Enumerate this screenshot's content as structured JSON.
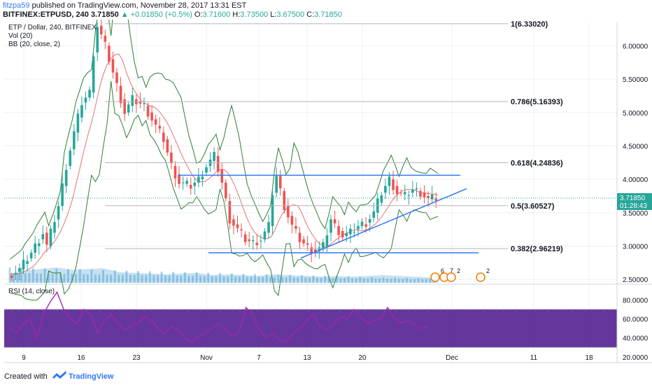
{
  "header": {
    "user": "fitzpa59",
    "published_text": "published on TradingView.com, November 28, 2017 13:31 EST",
    "symbol_line": "BITFINEX:ETPUSD, 240",
    "price": "3.71850",
    "change": "+0.01850 (+0.5%)",
    "o_label": "O:",
    "o": "3.71600",
    "h_label": "H:",
    "h": "3.73500",
    "l_label": "L:",
    "l": "3.67500",
    "c_label": "C:",
    "c": "3.71850"
  },
  "legend": {
    "title": "ETP / Dollar, 240, BITFINEX",
    "vol": "Vol (20)",
    "bb": "BB (20, close, 2)",
    "rsi": "RSI (14, close)"
  },
  "footer": {
    "created_with": "Created with",
    "brand": "TradingView"
  },
  "colors": {
    "up": "#26a69a",
    "down": "#ef5350",
    "bb": "#2e7d32",
    "basis": "#e57373",
    "rsi": "#9c27b0",
    "rsi_band": "#4a148c",
    "trendline": "#3179f5",
    "price_marker": "#26a69a",
    "volume": "#1e88c8"
  },
  "chart_data": {
    "type": "candlestick",
    "symbol": "ETPUSD",
    "interval": "240",
    "ylim": [
      2.45,
      6.35
    ],
    "price_ticks": [
      "6.00000",
      "5.50000",
      "5.00000",
      "4.50000",
      "4.00000",
      "3.50000",
      "3.00000",
      "2.50000"
    ],
    "price_tick_values": [
      6.0,
      5.5,
      5.0,
      4.5,
      4.0,
      3.5,
      3.0,
      2.5
    ],
    "last_price": "3.71850",
    "countdown": "01:28:43",
    "x_ticks": [
      "9",
      "16",
      "23",
      "Nov",
      "7",
      "13",
      "20",
      "Dec",
      "11",
      "18"
    ],
    "fib_levels": [
      {
        "label": "1(6.33020)",
        "value": 6.3302
      },
      {
        "label": "0.786(5.16393)",
        "value": 5.16393
      },
      {
        "label": "0.618(4.24836)",
        "value": 4.24836
      },
      {
        "label": "0.5(3.60527)",
        "value": 3.60527
      },
      {
        "label": "0.382(2.96219)",
        "value": 2.96219
      }
    ],
    "rsi_ticks": [
      "80.0000",
      "60.0000",
      "40.0000",
      "20.0000"
    ],
    "rsi_tick_values": [
      80,
      60,
      40,
      20
    ],
    "rsi_bands": [
      70,
      30
    ],
    "rsi_ylim": [
      14,
      95
    ],
    "event_badges": [
      "6",
      "7",
      "2",
      "2"
    ],
    "price_path": [
      [
        0,
        2.55
      ],
      [
        3,
        2.65
      ],
      [
        6,
        2.9
      ],
      [
        9,
        3.2
      ],
      [
        10,
        3.0
      ],
      [
        13,
        3.6
      ],
      [
        15,
        4.2
      ],
      [
        17,
        4.7
      ],
      [
        19,
        5.15
      ],
      [
        21,
        5.3
      ],
      [
        22,
        5.9
      ],
      [
        23,
        6.3
      ],
      [
        25,
        6.0
      ],
      [
        28,
        5.4
      ],
      [
        30,
        5.0
      ],
      [
        32,
        5.2
      ],
      [
        35,
        5.1
      ],
      [
        38,
        4.8
      ],
      [
        40,
        4.6
      ],
      [
        42,
        4.2
      ],
      [
        44,
        3.95
      ],
      [
        47,
        3.9
      ],
      [
        49,
        4.0
      ],
      [
        51,
        4.2
      ],
      [
        53,
        4.35
      ],
      [
        55,
        3.95
      ],
      [
        57,
        3.4
      ],
      [
        59,
        3.25
      ],
      [
        61,
        3.1
      ],
      [
        63,
        3.05
      ],
      [
        65,
        3.1
      ],
      [
        67,
        3.3
      ],
      [
        68,
        3.8
      ],
      [
        69,
        4.05
      ],
      [
        71,
        3.6
      ],
      [
        73,
        3.3
      ],
      [
        75,
        3.1
      ],
      [
        77,
        2.98
      ],
      [
        79,
        2.92
      ],
      [
        81,
        3.0
      ],
      [
        83,
        3.4
      ],
      [
        84,
        3.3
      ],
      [
        86,
        3.15
      ],
      [
        88,
        3.2
      ],
      [
        90,
        3.3
      ],
      [
        92,
        3.35
      ],
      [
        94,
        3.5
      ],
      [
        96,
        3.8
      ],
      [
        98,
        4.0
      ],
      [
        100,
        3.8
      ],
      [
        102,
        3.75
      ],
      [
        104,
        3.85
      ],
      [
        106,
        3.8
      ],
      [
        108,
        3.7
      ],
      [
        110,
        3.72
      ]
    ],
    "rsi_path": [
      [
        0,
        50
      ],
      [
        1,
        45
      ],
      [
        2,
        55
      ],
      [
        3,
        60
      ],
      [
        4,
        40
      ],
      [
        5,
        65
      ],
      [
        6,
        78
      ],
      [
        7,
        88
      ],
      [
        8,
        70
      ],
      [
        9,
        60
      ],
      [
        10,
        55
      ],
      [
        11,
        70
      ],
      [
        12,
        65
      ],
      [
        13,
        45
      ],
      [
        14,
        58
      ],
      [
        15,
        65
      ],
      [
        16,
        55
      ],
      [
        17,
        48
      ],
      [
        18,
        52
      ],
      [
        19,
        56
      ],
      [
        20,
        62
      ],
      [
        21,
        58
      ],
      [
        22,
        50
      ],
      [
        23,
        45
      ],
      [
        24,
        52
      ],
      [
        25,
        48
      ],
      [
        26,
        40
      ],
      [
        27,
        35
      ],
      [
        28,
        42
      ],
      [
        29,
        45
      ],
      [
        30,
        50
      ],
      [
        31,
        55
      ],
      [
        32,
        48
      ],
      [
        33,
        42
      ],
      [
        34,
        46
      ],
      [
        35,
        72
      ],
      [
        36,
        65
      ],
      [
        37,
        48
      ],
      [
        38,
        40
      ],
      [
        39,
        44
      ],
      [
        40,
        38
      ],
      [
        41,
        36
      ],
      [
        42,
        45
      ],
      [
        43,
        50
      ],
      [
        44,
        58
      ],
      [
        45,
        65
      ],
      [
        46,
        52
      ],
      [
        47,
        48
      ],
      [
        48,
        55
      ],
      [
        49,
        62
      ],
      [
        50,
        60
      ],
      [
        51,
        70
      ],
      [
        52,
        62
      ],
      [
        53,
        55
      ],
      [
        54,
        58
      ],
      [
        55,
        60
      ],
      [
        56,
        72
      ],
      [
        57,
        60
      ],
      [
        58,
        56
      ],
      [
        59,
        58
      ],
      [
        60,
        54
      ],
      [
        61,
        50
      ],
      [
        62,
        52
      ]
    ],
    "volume_path": [
      [
        0,
        0.6
      ],
      [
        4,
        0.8
      ],
      [
        8,
        0.9
      ],
      [
        12,
        1.0
      ],
      [
        16,
        0.85
      ],
      [
        20,
        0.9
      ],
      [
        24,
        0.95
      ],
      [
        28,
        0.7
      ],
      [
        32,
        0.65
      ],
      [
        36,
        0.6
      ],
      [
        40,
        0.55
      ],
      [
        44,
        0.6
      ],
      [
        48,
        0.65
      ],
      [
        52,
        0.5
      ],
      [
        56,
        0.55
      ],
      [
        60,
        0.5
      ],
      [
        64,
        0.45
      ],
      [
        68,
        0.55
      ],
      [
        72,
        0.5
      ],
      [
        76,
        0.45
      ],
      [
        80,
        0.4
      ],
      [
        84,
        0.45
      ],
      [
        88,
        0.4
      ],
      [
        92,
        0.45
      ],
      [
        96,
        0.5
      ],
      [
        100,
        0.45
      ],
      [
        104,
        0.4
      ],
      [
        108,
        0.35
      ],
      [
        110,
        0.3
      ]
    ]
  }
}
